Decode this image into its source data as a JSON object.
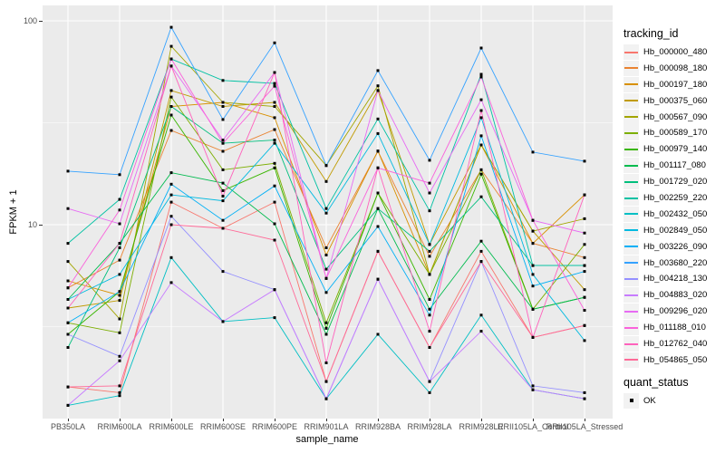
{
  "chart_data": {
    "type": "line",
    "title": "",
    "xlabel": "sample_name",
    "ylabel": "FPKM + 1",
    "y_scale": "log10",
    "ylim": [
      1.12,
      119
    ],
    "y_tick_labels": [
      "100",
      "10"
    ],
    "y_tick_values": [
      100,
      10
    ],
    "y_minor_values": [
      31.623,
      3.1623
    ],
    "grid": "white major and minor gridlines on grey panel, legend right",
    "point_marker": "small black square",
    "categories": [
      "PB350LA",
      "RRIM600LA",
      "RRIM600LE",
      "RRIM600SE",
      "RRIM600PE",
      "RRIM901LA",
      "RRIM928BA",
      "RRIM928LA",
      "RRIM928LE",
      "RRII105LA_Control",
      "RRII105LA_Stressed"
    ],
    "legend_title": "tracking_id",
    "series": [
      {
        "name": "Hb_000000_480",
        "color": "#F8766D",
        "values": [
          1.6,
          1.5,
          12.9,
          9.6,
          12.9,
          1.7,
          7.4,
          2.5,
          7.4,
          2.8,
          3.2
        ]
      },
      {
        "name": "Hb_000098_180",
        "color": "#EA8331",
        "values": [
          4.9,
          6.7,
          29,
          22.9,
          29.3,
          7.7,
          22.9,
          7.0,
          18.6,
          8.1,
          6.9
        ]
      },
      {
        "name": "Hb_000197_180",
        "color": "#D89000",
        "values": [
          5.3,
          4.5,
          38,
          39.8,
          33.5,
          7.1,
          23,
          5.7,
          24.6,
          8.1,
          14
        ]
      },
      {
        "name": "Hb_000375_060",
        "color": "#C09B00",
        "values": [
          3.9,
          4.25,
          45.5,
          38,
          39.8,
          16.3,
          45.5,
          8.0,
          24.6,
          9.3,
          4.8
        ]
      },
      {
        "name": "Hb_000567_090",
        "color": "#A3A500",
        "values": [
          6.6,
          3.45,
          75,
          39.8,
          38,
          19.5,
          48,
          5.7,
          24.6,
          9.3,
          10.7
        ]
      },
      {
        "name": "Hb_000589_170",
        "color": "#7CAE00",
        "values": [
          3.3,
          2.95,
          42.3,
          18.6,
          20,
          3.3,
          14.3,
          5.7,
          18.6,
          3.85,
          8.0
        ]
      },
      {
        "name": "Hb_000979_140",
        "color": "#39B600",
        "values": [
          2.9,
          4.7,
          34.5,
          14.7,
          19,
          3.1,
          14.3,
          4.3,
          17.7,
          3.85,
          4.4
        ]
      },
      {
        "name": "Hb_001117_080",
        "color": "#00BB4E",
        "values": [
          4.3,
          8.1,
          18,
          16,
          10.1,
          2.9,
          12,
          3.85,
          8.3,
          3.85,
          4.4
        ]
      },
      {
        "name": "Hb_001729_020",
        "color": "#00BF7D",
        "values": [
          2.5,
          7.7,
          38,
          25.1,
          26,
          6.05,
          12,
          7.4,
          13.7,
          6.3,
          6.3
        ]
      },
      {
        "name": "Hb_002259_220",
        "color": "#00C1A3",
        "values": [
          8.1,
          13.3,
          65,
          51,
          49.3,
          12,
          33,
          11.7,
          54.7,
          6.3,
          6.3
        ]
      },
      {
        "name": "Hb_002432_050",
        "color": "#00BFC4",
        "values": [
          1.3,
          1.45,
          6.9,
          3.35,
          3.5,
          1.4,
          2.9,
          1.5,
          3.6,
          1.55,
          1.4
        ]
      },
      {
        "name": "Hb_002849_050",
        "color": "#00BAE0",
        "values": [
          4.3,
          5.7,
          14,
          13.1,
          25.1,
          11.4,
          28,
          8.0,
          33.5,
          5.7,
          2.7
        ]
      },
      {
        "name": "Hb_003226_090",
        "color": "#00B0F6",
        "values": [
          3.3,
          4.7,
          15.8,
          10.5,
          15.5,
          4.65,
          9.8,
          3.6,
          27.3,
          5.0,
          5.9
        ]
      },
      {
        "name": "Hb_003680_220",
        "color": "#35A2FF",
        "values": [
          18.3,
          17.6,
          93,
          32.8,
          78,
          19.5,
          57,
          20.7,
          73.6,
          22.7,
          20.5
        ]
      },
      {
        "name": "Hb_004218_130",
        "color": "#9590FF",
        "values": [
          2.9,
          2.26,
          11,
          5.9,
          4.8,
          1.4,
          5.4,
          1.7,
          6.6,
          1.62,
          1.5
        ]
      },
      {
        "name": "Hb_004883_020",
        "color": "#C77CFF",
        "values": [
          1.3,
          2.15,
          5.2,
          3.35,
          4.8,
          1.4,
          5.4,
          1.7,
          3.0,
          1.55,
          1.4
        ]
      },
      {
        "name": "Hb_009296_020",
        "color": "#E76BF3",
        "values": [
          12,
          10.1,
          60,
          26,
          55.8,
          5.45,
          45.5,
          14.3,
          41,
          10.5,
          9.1
        ]
      },
      {
        "name": "Hb_011188_010",
        "color": "#FA62DB",
        "values": [
          4.9,
          11.8,
          65,
          25.1,
          47.8,
          5.45,
          19,
          16,
          53,
          10.5,
          3.8
        ]
      },
      {
        "name": "Hb_012762_040",
        "color": "#FF62BC",
        "values": [
          3.9,
          8.1,
          60,
          13.8,
          55.8,
          2.1,
          19,
          3.0,
          36.3,
          2.8,
          14
        ]
      },
      {
        "name": "Hb_054865_050",
        "color": "#FF6A98",
        "values": [
          1.6,
          1.62,
          10,
          9.6,
          8.4,
          1.7,
          7.4,
          2.5,
          6.6,
          2.8,
          3.2
        ]
      }
    ],
    "legend2": {
      "title": "quant_status",
      "items": [
        {
          "label": "OK",
          "marker": "black-square"
        }
      ]
    }
  },
  "style": {
    "panel_bg": "#EBEBEB",
    "grid_color": "#FFFFFF",
    "tick_label_color": "#4D4D4D",
    "point_color": "#000000",
    "legend_key_bg": "#F2F2F2"
  }
}
